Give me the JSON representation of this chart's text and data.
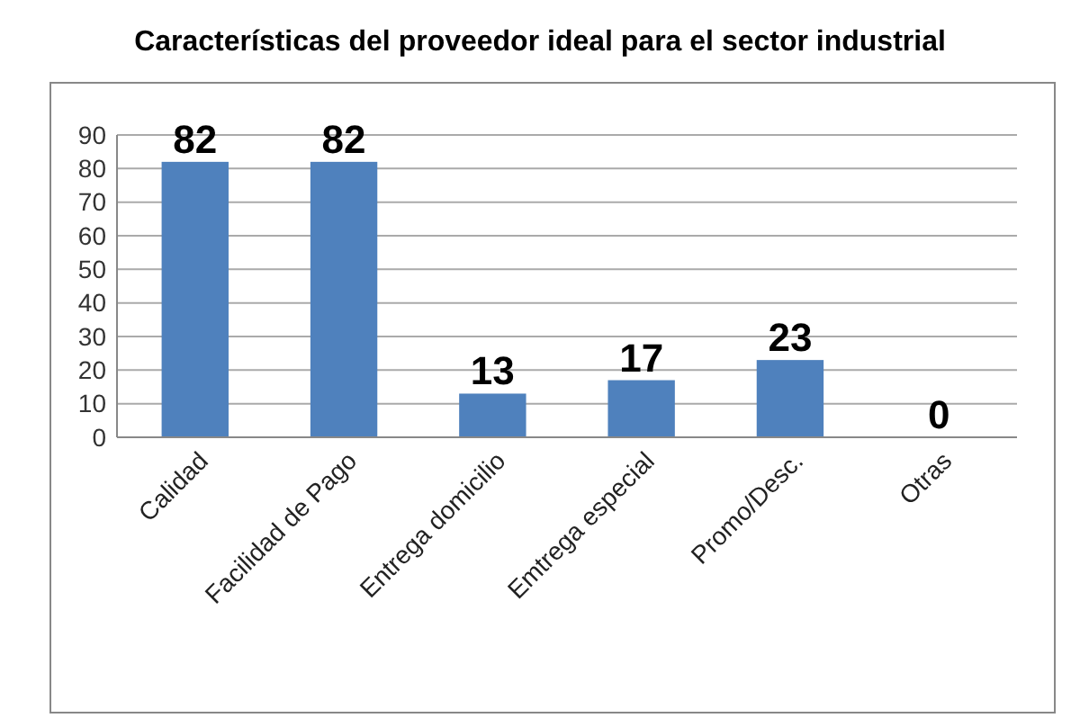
{
  "chart_data": {
    "type": "bar",
    "title": "Características del proveedor ideal para el sector industrial",
    "categories": [
      "Calidad",
      "Facilidad de Pago",
      "Entrega domicilio",
      "Emtrega especial",
      "Promo/Desc.",
      "Otras"
    ],
    "values": [
      82,
      82,
      13,
      17,
      23,
      0
    ],
    "color": "#4f81bd",
    "ylim": [
      0,
      90
    ],
    "yticks": [
      0,
      10,
      20,
      30,
      40,
      50,
      60,
      70,
      80,
      90
    ],
    "grid": "y",
    "data_labels": true
  }
}
